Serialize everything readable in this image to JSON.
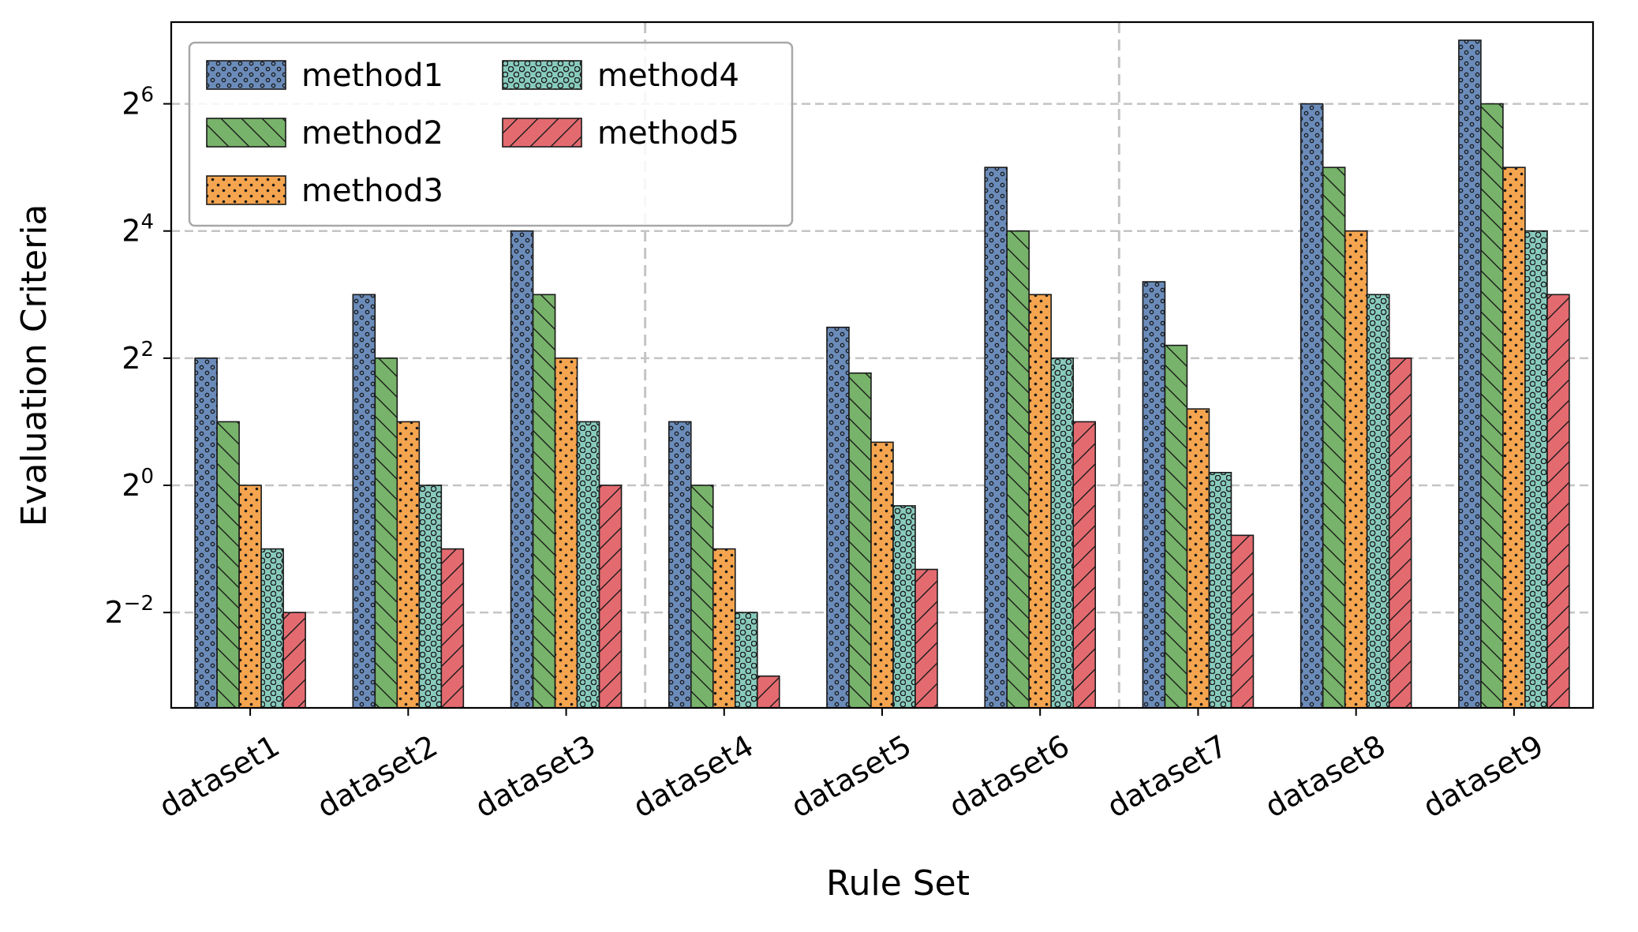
{
  "chart_data": {
    "type": "bar",
    "title": "",
    "xlabel": "Rule  Set",
    "ylabel": "Evaluation Criteria",
    "y_scale": "log2",
    "ylim": [
      0.0884,
      156
    ],
    "y_ticks": [
      {
        "value": 0.25,
        "base": "2",
        "exp": "−2"
      },
      {
        "value": 1,
        "base": "2",
        "exp": "0"
      },
      {
        "value": 4,
        "base": "2",
        "exp": "2"
      },
      {
        "value": 16,
        "base": "2",
        "exp": "4"
      },
      {
        "value": 64,
        "base": "2",
        "exp": "6"
      }
    ],
    "categories": [
      "dataset1",
      "dataset2",
      "dataset3",
      "dataset4",
      "dataset5",
      "dataset6",
      "dataset7",
      "dataset8",
      "dataset9"
    ],
    "series": [
      {
        "name": "method1",
        "color": "#6b8cba",
        "hatch": "small-circles",
        "values": [
          4,
          8,
          16,
          2,
          5.6,
          32,
          9.2,
          64,
          128
        ]
      },
      {
        "name": "method2",
        "color": "#77b36a",
        "hatch": "backslash",
        "values": [
          2,
          4,
          8,
          1,
          3.4,
          16,
          4.6,
          32,
          64
        ]
      },
      {
        "name": "method3",
        "color": "#f5a54f",
        "hatch": "dots",
        "values": [
          1,
          2,
          4,
          0.5,
          1.6,
          8,
          2.3,
          16,
          32
        ]
      },
      {
        "name": "method4",
        "color": "#88cbbd",
        "hatch": "rings",
        "values": [
          0.5,
          1,
          2,
          0.25,
          0.8,
          4,
          1.15,
          8,
          16
        ]
      },
      {
        "name": "method5",
        "color": "#e36b70",
        "hatch": "slash",
        "values": [
          0.25,
          0.5,
          1,
          0.125,
          0.4,
          2,
          0.58,
          4,
          8
        ]
      }
    ],
    "grid": {
      "y": true,
      "x_separators_after": [
        3,
        6
      ]
    },
    "legend": {
      "position": "top-left",
      "columns": 2
    }
  }
}
